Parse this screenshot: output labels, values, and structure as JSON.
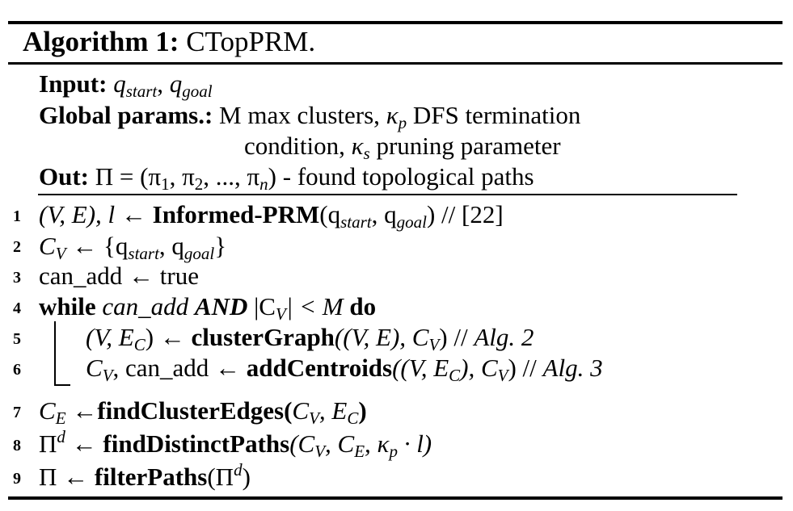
{
  "algorithm": {
    "label": "Algorithm 1:",
    "name": "CTopPRM."
  },
  "header": {
    "input_label": "Input:",
    "input_q": "q",
    "input_start": "start",
    "input_sep": ",",
    "input_goal": "goal",
    "params_label": "Global params.:",
    "params_line1_a": "M max clusters,",
    "params_kappa": "κ",
    "params_p": "p",
    "params_line1_b": "DFS termination",
    "params_line2_a": "condition,",
    "params_s": "s",
    "params_line2_b": "pruning parameter",
    "out_label": "Out:",
    "out_text": "Π = (π",
    "out_1": "1",
    "out_mid1": ", π",
    "out_2": "2",
    "out_mid2": ", ..., π",
    "out_n": "n",
    "out_tail": ") - found topological paths"
  },
  "lines": [
    {
      "num": "1"
    },
    {
      "num": "2"
    },
    {
      "num": "3"
    },
    {
      "num": "4"
    },
    {
      "num": "5"
    },
    {
      "num": "6"
    },
    {
      "num": "7"
    },
    {
      "num": "8"
    },
    {
      "num": "9"
    }
  ],
  "code": {
    "l1_a": "(V, E), l ← ",
    "l1_fn": "Informed-PRM",
    "l1_b": "(q",
    "l1_start": "start",
    "l1_c": ", q",
    "l1_goal": "goal",
    "l1_d": ") // [22]",
    "l2_a": "C",
    "l2_V": "V",
    "l2_b": " ← {q",
    "l2_start": "start",
    "l2_c": ", q",
    "l2_goal": "goal",
    "l2_d": "}",
    "l3": "can_add ← true",
    "l4_while": "while",
    "l4_a": " can_add ",
    "l4_and": "AND",
    "l4_b": " |C",
    "l4_V": "V",
    "l4_c": "| < M ",
    "l4_do": "do",
    "l5_a": "(V, E",
    "l5_C": "C",
    "l5_b": ") ← ",
    "l5_fn": "clusterGraph",
    "l5_c": "((V, E), C",
    "l5_V": "V",
    "l5_d": ") // ",
    "l5_alg": "Alg. 2",
    "l6_a": "C",
    "l6_V": "V",
    "l6_b": ", can_add ← ",
    "l6_fn": "addCentroids",
    "l6_c": "((V, E",
    "l6_C": "C",
    "l6_d": "), C",
    "l6_V2": "V",
    "l6_e": ") // ",
    "l6_alg": "Alg. 3",
    "l7_a": "C",
    "l7_E": "E",
    "l7_b": " ←",
    "l7_fn": "findClusterEdges(",
    "l7_c": "C",
    "l7_V": "V",
    "l7_d": ", E",
    "l7_C": "C",
    "l7_e": ")",
    "l8_a": "Π",
    "l8_d": "d",
    "l8_b": " ← ",
    "l8_fn": "findDistinctPaths",
    "l8_c": "(C",
    "l8_V": "V",
    "l8_e": ", C",
    "l8_E": "E",
    "l8_f": ", κ",
    "l8_p": "p",
    "l8_g": " · l)",
    "l9_a": "Π ← ",
    "l9_fn": "filterPaths",
    "l9_b": "(Π",
    "l9_d": "d",
    "l9_c": ")"
  }
}
